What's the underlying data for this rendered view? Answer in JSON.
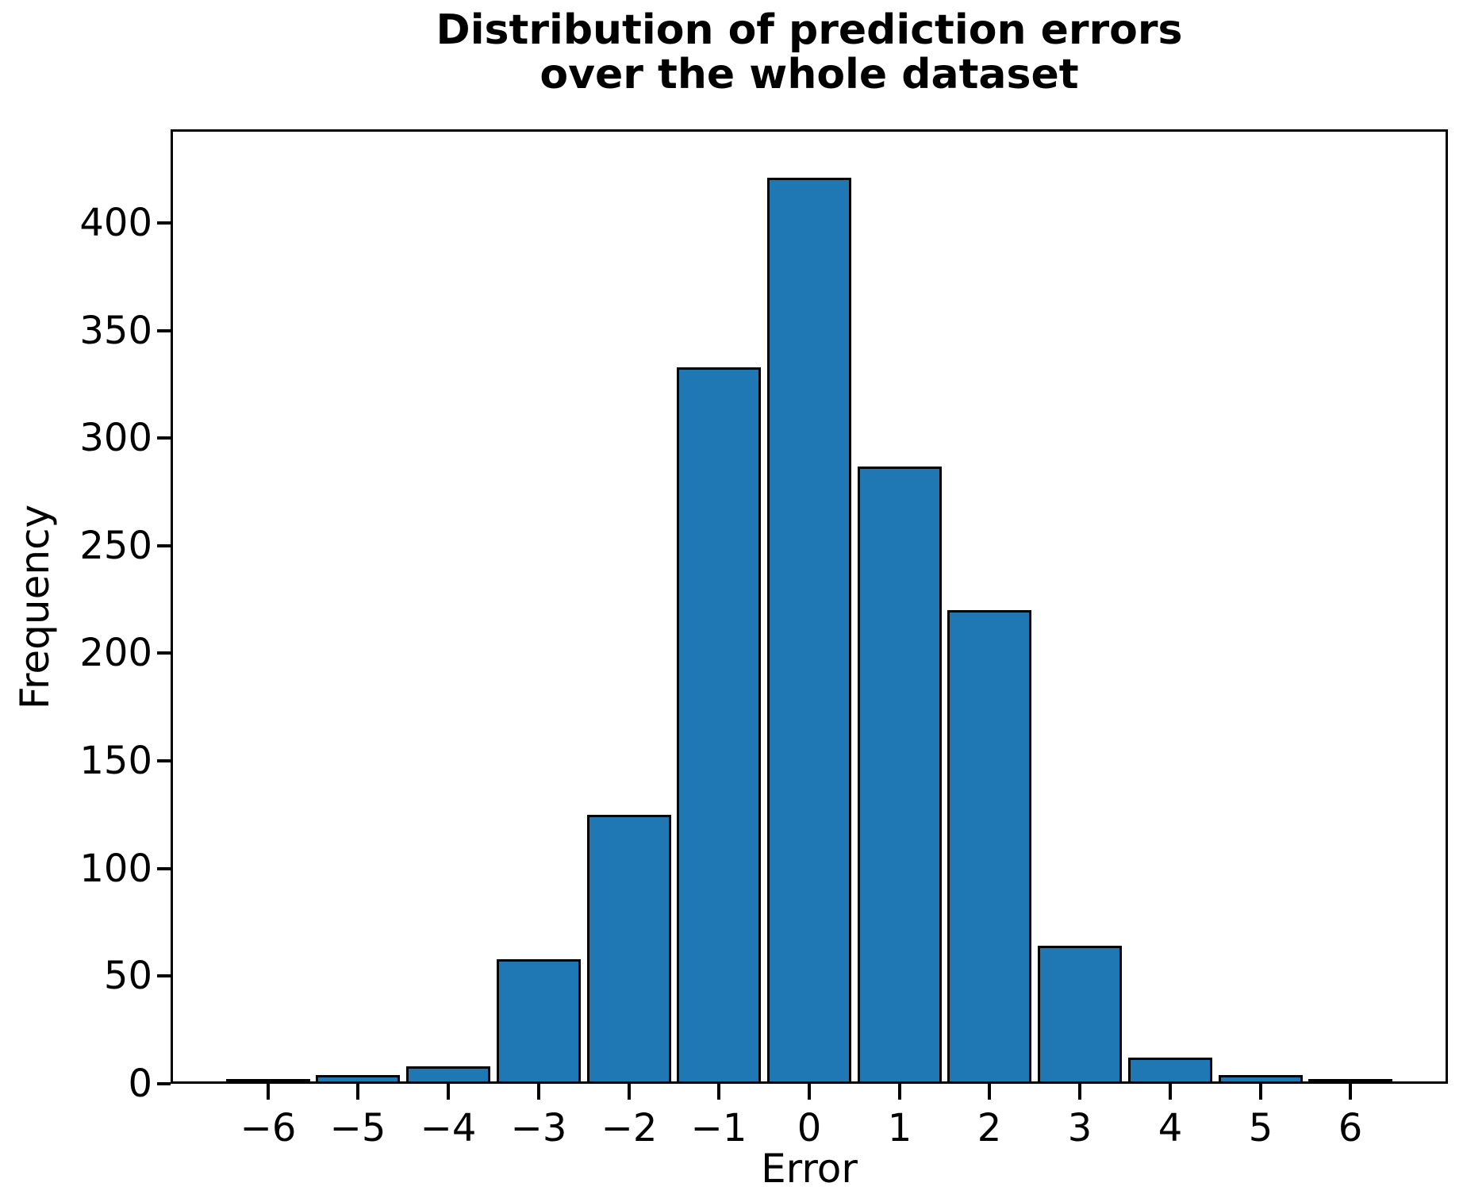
{
  "figure": {
    "title": "Distribution of prediction errors\nover the whole dataset",
    "xlabel": "Error",
    "ylabel": "Frequency"
  },
  "chart_data": {
    "type": "bar",
    "title": "Distribution of prediction errors over the whole dataset",
    "xlabel": "Error",
    "ylabel": "Frequency",
    "categories": [
      -6,
      -5,
      -4,
      -3,
      -2,
      -1,
      0,
      1,
      2,
      3,
      4,
      5,
      6
    ],
    "values": [
      2,
      4,
      8,
      58,
      125,
      333,
      421,
      287,
      220,
      64,
      12,
      4,
      2
    ],
    "bin_width": 1,
    "bar_width_fraction": 0.93,
    "xticks": [
      -6,
      -5,
      -4,
      -3,
      -2,
      -1,
      0,
      1,
      2,
      3,
      4,
      5,
      6
    ],
    "yticks": [
      0,
      50,
      100,
      150,
      200,
      250,
      300,
      350,
      400
    ],
    "xlim": [
      -7.08,
      7.08
    ],
    "ylim": [
      0,
      443.5
    ],
    "grid": false,
    "legend_position": "none",
    "bar_color": "#1f77b4",
    "bar_edge_color": "#000000",
    "axis_color": "#000000",
    "text_color": "#000000",
    "background_color": "#ffffff"
  }
}
